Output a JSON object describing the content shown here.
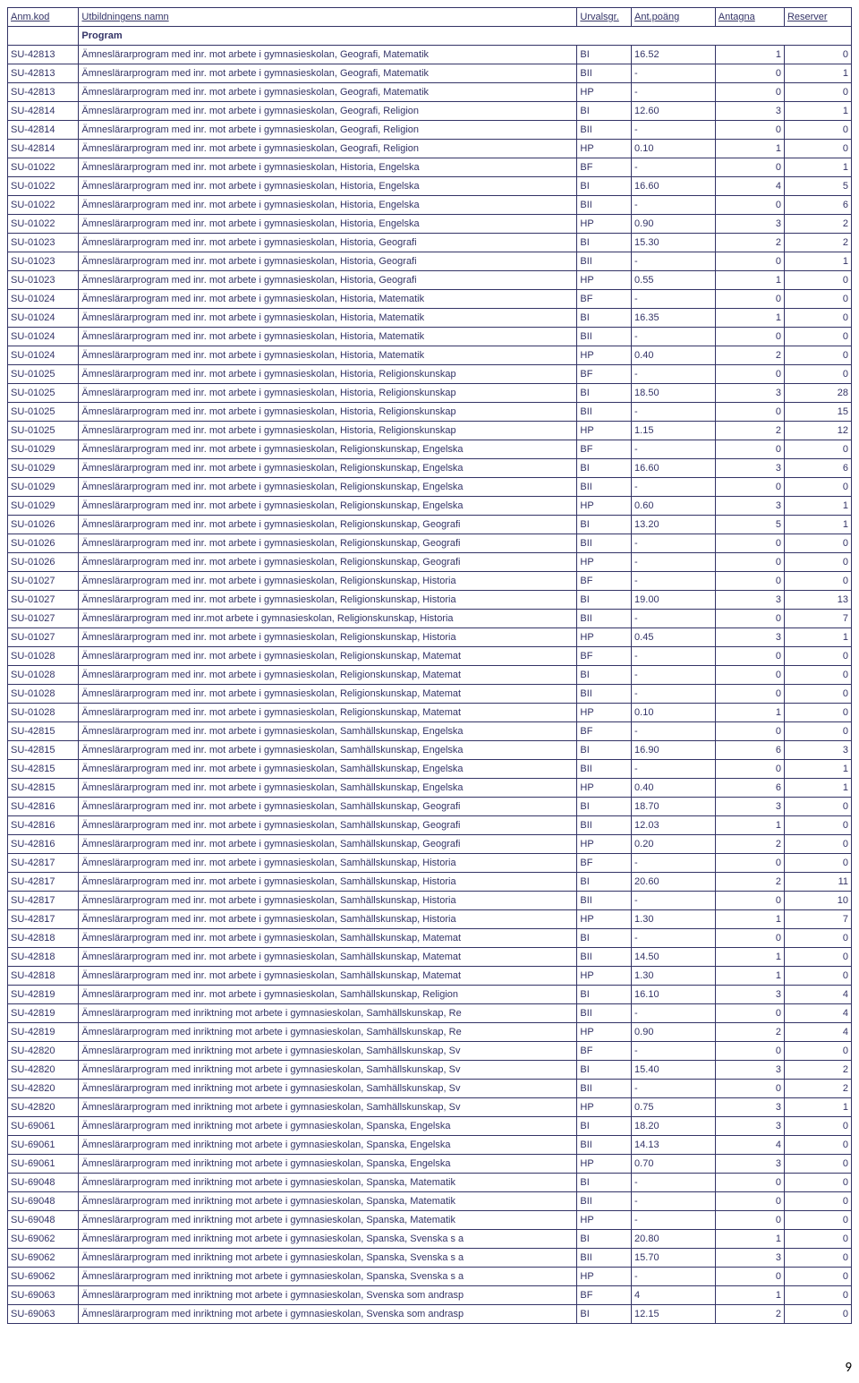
{
  "columns": {
    "code": "Anm.kod",
    "name": "Utbildningens namn",
    "urval": "Urvalsgr.",
    "poang": "Ant.poäng",
    "antagna": "Antagna",
    "reserver": "Reserver"
  },
  "section_label": "Program",
  "page_number": "9",
  "colors": {
    "text": "#333366",
    "border": "#333366",
    "background": "#ffffff"
  },
  "rows": [
    {
      "code": "SU-42813",
      "name": "Ämneslärarprogram med inr. mot arbete i gymnasieskolan, Geografi, Matematik",
      "urval": "BI",
      "poang": "16.52",
      "antagna": "1",
      "reserver": "0"
    },
    {
      "code": "SU-42813",
      "name": "Ämneslärarprogram med inr. mot arbete i gymnasieskolan, Geografi, Matematik",
      "urval": "BII",
      "poang": "-",
      "antagna": "0",
      "reserver": "1"
    },
    {
      "code": "SU-42813",
      "name": "Ämneslärarprogram med inr. mot arbete i gymnasieskolan, Geografi, Matematik",
      "urval": "HP",
      "poang": "-",
      "antagna": "0",
      "reserver": "0"
    },
    {
      "code": "SU-42814",
      "name": "Ämneslärarprogram med inr. mot arbete i gymnasieskolan, Geografi, Religion",
      "urval": "BI",
      "poang": "12.60",
      "antagna": "3",
      "reserver": "1"
    },
    {
      "code": "SU-42814",
      "name": "Ämneslärarprogram med inr. mot arbete i gymnasieskolan, Geografi, Religion",
      "urval": "BII",
      "poang": "-",
      "antagna": "0",
      "reserver": "0"
    },
    {
      "code": "SU-42814",
      "name": "Ämneslärarprogram med inr. mot arbete i gymnasieskolan, Geografi, Religion",
      "urval": "HP",
      "poang": "0.10",
      "antagna": "1",
      "reserver": "0"
    },
    {
      "code": "SU-01022",
      "name": "Ämneslärarprogram med inr. mot arbete i gymnasieskolan, Historia, Engelska",
      "urval": "BF",
      "poang": "-",
      "antagna": "0",
      "reserver": "1"
    },
    {
      "code": "SU-01022",
      "name": "Ämneslärarprogram med inr. mot arbete i gymnasieskolan, Historia, Engelska",
      "urval": "BI",
      "poang": "16.60",
      "antagna": "4",
      "reserver": "5"
    },
    {
      "code": "SU-01022",
      "name": "Ämneslärarprogram med inr. mot arbete i gymnasieskolan, Historia, Engelska",
      "urval": "BII",
      "poang": "-",
      "antagna": "0",
      "reserver": "6"
    },
    {
      "code": "SU-01022",
      "name": "Ämneslärarprogram med inr. mot arbete i gymnasieskolan, Historia, Engelska",
      "urval": "HP",
      "poang": "0.90",
      "antagna": "3",
      "reserver": "2"
    },
    {
      "code": "SU-01023",
      "name": "Ämneslärarprogram med inr. mot arbete i gymnasieskolan, Historia, Geografi",
      "urval": "BI",
      "poang": "15.30",
      "antagna": "2",
      "reserver": "2"
    },
    {
      "code": "SU-01023",
      "name": "Ämneslärarprogram med inr. mot arbete i gymnasieskolan, Historia, Geografi",
      "urval": "BII",
      "poang": "-",
      "antagna": "0",
      "reserver": "1"
    },
    {
      "code": "SU-01023",
      "name": "Ämneslärarprogram med inr. mot arbete i gymnasieskolan, Historia, Geografi",
      "urval": "HP",
      "poang": "0.55",
      "antagna": "1",
      "reserver": "0"
    },
    {
      "code": "SU-01024",
      "name": "Ämneslärarprogram med inr. mot arbete i gymnasieskolan, Historia, Matematik",
      "urval": "BF",
      "poang": "-",
      "antagna": "0",
      "reserver": "0"
    },
    {
      "code": "SU-01024",
      "name": "Ämneslärarprogram med inr. mot arbete i gymnasieskolan, Historia, Matematik",
      "urval": "BI",
      "poang": "16.35",
      "antagna": "1",
      "reserver": "0"
    },
    {
      "code": "SU-01024",
      "name": "Ämneslärarprogram med inr. mot arbete i gymnasieskolan, Historia, Matematik",
      "urval": "BII",
      "poang": "-",
      "antagna": "0",
      "reserver": "0"
    },
    {
      "code": "SU-01024",
      "name": "Ämneslärarprogram med inr. mot arbete i gymnasieskolan, Historia, Matematik",
      "urval": "HP",
      "poang": "0.40",
      "antagna": "2",
      "reserver": "0"
    },
    {
      "code": "SU-01025",
      "name": "Ämneslärarprogram med inr. mot arbete i gymnasieskolan, Historia, Religionskunskap",
      "urval": "BF",
      "poang": "-",
      "antagna": "0",
      "reserver": "0"
    },
    {
      "code": "SU-01025",
      "name": "Ämneslärarprogram med inr. mot arbete i gymnasieskolan, Historia, Religionskunskap",
      "urval": "BI",
      "poang": "18.50",
      "antagna": "3",
      "reserver": "28"
    },
    {
      "code": "SU-01025",
      "name": "Ämneslärarprogram med inr. mot arbete i gymnasieskolan, Historia, Religionskunskap",
      "urval": "BII",
      "poang": "-",
      "antagna": "0",
      "reserver": "15"
    },
    {
      "code": "SU-01025",
      "name": "Ämneslärarprogram med inr. mot arbete i gymnasieskolan, Historia, Religionskunskap",
      "urval": "HP",
      "poang": "1.15",
      "antagna": "2",
      "reserver": "12"
    },
    {
      "code": "SU-01029",
      "name": "Ämneslärarprogram med inr. mot arbete i gymnasieskolan, Religionskunskap, Engelska",
      "urval": "BF",
      "poang": "-",
      "antagna": "0",
      "reserver": "0"
    },
    {
      "code": "SU-01029",
      "name": "Ämneslärarprogram med inr. mot arbete i gymnasieskolan, Religionskunskap, Engelska",
      "urval": "BI",
      "poang": "16.60",
      "antagna": "3",
      "reserver": "6"
    },
    {
      "code": "SU-01029",
      "name": "Ämneslärarprogram med inr. mot arbete i gymnasieskolan, Religionskunskap, Engelska",
      "urval": "BII",
      "poang": "-",
      "antagna": "0",
      "reserver": "0"
    },
    {
      "code": "SU-01029",
      "name": "Ämneslärarprogram med inr. mot arbete i gymnasieskolan, Religionskunskap, Engelska",
      "urval": "HP",
      "poang": "0.60",
      "antagna": "3",
      "reserver": "1"
    },
    {
      "code": "SU-01026",
      "name": "Ämneslärarprogram med inr. mot arbete i gymnasieskolan, Religionskunskap, Geografi",
      "urval": "BI",
      "poang": "13.20",
      "antagna": "5",
      "reserver": "1"
    },
    {
      "code": "SU-01026",
      "name": "Ämneslärarprogram med inr. mot arbete i gymnasieskolan, Religionskunskap, Geografi",
      "urval": "BII",
      "poang": "-",
      "antagna": "0",
      "reserver": "0"
    },
    {
      "code": "SU-01026",
      "name": "Ämneslärarprogram med inr. mot arbete i gymnasieskolan, Religionskunskap, Geografi",
      "urval": "HP",
      "poang": "-",
      "antagna": "0",
      "reserver": "0"
    },
    {
      "code": "SU-01027",
      "name": "Ämneslärarprogram med inr. mot arbete i gymnasieskolan, Religionskunskap, Historia",
      "urval": "BF",
      "poang": "-",
      "antagna": "0",
      "reserver": "0"
    },
    {
      "code": "SU-01027",
      "name": "Ämneslärarprogram med inr. mot arbete i gymnasieskolan, Religionskunskap, Historia",
      "urval": "BI",
      "poang": "19.00",
      "antagna": "3",
      "reserver": "13"
    },
    {
      "code": "SU-01027",
      "name": "Ämneslärarprogram med inr.mot arbete i gymnasieskolan, Religionskunskap, Historia",
      "urval": "BII",
      "poang": "-",
      "antagna": "0",
      "reserver": "7"
    },
    {
      "code": "SU-01027",
      "name": "Ämneslärarprogram med inr. mot arbete i gymnasieskolan, Religionskunskap, Historia",
      "urval": "HP",
      "poang": "0.45",
      "antagna": "3",
      "reserver": "1"
    },
    {
      "code": "SU-01028",
      "name": "Ämneslärarprogram med inr. mot arbete i gymnasieskolan, Religionskunskap, Matemat",
      "urval": "BF",
      "poang": "-",
      "antagna": "0",
      "reserver": "0"
    },
    {
      "code": "SU-01028",
      "name": "Ämneslärarprogram med inr. mot arbete i gymnasieskolan, Religionskunskap, Matemat",
      "urval": "BI",
      "poang": "-",
      "antagna": "0",
      "reserver": "0"
    },
    {
      "code": "SU-01028",
      "name": "Ämneslärarprogram med inr. mot arbete i gymnasieskolan, Religionskunskap, Matemat",
      "urval": "BII",
      "poang": "-",
      "antagna": "0",
      "reserver": "0"
    },
    {
      "code": "SU-01028",
      "name": "Ämneslärarprogram med inr. mot arbete i gymnasieskolan, Religionskunskap, Matemat",
      "urval": "HP",
      "poang": "0.10",
      "antagna": "1",
      "reserver": "0"
    },
    {
      "code": "SU-42815",
      "name": "Ämneslärarprogram med inr. mot arbete i gymnasieskolan, Samhällskunskap, Engelska",
      "urval": "BF",
      "poang": "-",
      "antagna": "0",
      "reserver": "0"
    },
    {
      "code": "SU-42815",
      "name": "Ämneslärarprogram med inr. mot arbete i gymnasieskolan, Samhällskunskap, Engelska",
      "urval": "BI",
      "poang": "16.90",
      "antagna": "6",
      "reserver": "3"
    },
    {
      "code": "SU-42815",
      "name": "Ämneslärarprogram med inr. mot arbete i gymnasieskolan, Samhällskunskap, Engelska",
      "urval": "BII",
      "poang": "-",
      "antagna": "0",
      "reserver": "1"
    },
    {
      "code": "SU-42815",
      "name": "Ämneslärarprogram med inr. mot arbete i gymnasieskolan, Samhällskunskap, Engelska",
      "urval": "HP",
      "poang": "0.40",
      "antagna": "6",
      "reserver": "1"
    },
    {
      "code": "SU-42816",
      "name": "Ämneslärarprogram med inr. mot arbete i gymnasieskolan, Samhällskunskap, Geografi",
      "urval": "BI",
      "poang": "18.70",
      "antagna": "3",
      "reserver": "0"
    },
    {
      "code": "SU-42816",
      "name": "Ämneslärarprogram med inr. mot arbete i gymnasieskolan, Samhällskunskap, Geografi",
      "urval": "BII",
      "poang": "12.03",
      "antagna": "1",
      "reserver": "0"
    },
    {
      "code": "SU-42816",
      "name": "Ämneslärarprogram med inr. mot arbete i gymnasieskolan, Samhällskunskap, Geografi",
      "urval": "HP",
      "poang": "0.20",
      "antagna": "2",
      "reserver": "0"
    },
    {
      "code": "SU-42817",
      "name": "Ämneslärarprogram med inr. mot arbete i gymnasieskolan, Samhällskunskap, Historia",
      "urval": "BF",
      "poang": "-",
      "antagna": "0",
      "reserver": "0"
    },
    {
      "code": "SU-42817",
      "name": "Ämneslärarprogram med inr. mot arbete i gymnasieskolan, Samhällskunskap, Historia",
      "urval": "BI",
      "poang": "20.60",
      "antagna": "2",
      "reserver": "11"
    },
    {
      "code": "SU-42817",
      "name": "Ämneslärarprogram med inr. mot arbete i gymnasieskolan, Samhällskunskap, Historia",
      "urval": "BII",
      "poang": "-",
      "antagna": "0",
      "reserver": "10"
    },
    {
      "code": "SU-42817",
      "name": "Ämneslärarprogram med inr. mot arbete i gymnasieskolan, Samhällskunskap, Historia",
      "urval": "HP",
      "poang": "1.30",
      "antagna": "1",
      "reserver": "7"
    },
    {
      "code": "SU-42818",
      "name": "Ämneslärarprogram med inr. mot arbete i gymnasieskolan, Samhällskunskap, Matemat",
      "urval": "BI",
      "poang": "-",
      "antagna": "0",
      "reserver": "0"
    },
    {
      "code": "SU-42818",
      "name": "Ämneslärarprogram med inr. mot arbete i gymnasieskolan, Samhällskunskap, Matemat",
      "urval": "BII",
      "poang": "14.50",
      "antagna": "1",
      "reserver": "0"
    },
    {
      "code": "SU-42818",
      "name": "Ämneslärarprogram med inr. mot arbete i gymnasieskolan, Samhällskunskap, Matemat",
      "urval": "HP",
      "poang": "1.30",
      "antagna": "1",
      "reserver": "0"
    },
    {
      "code": "SU-42819",
      "name": "Ämneslärarprogram med inr. mot arbete i gymnasieskolan, Samhällskunskap, Religion",
      "urval": "BI",
      "poang": "16.10",
      "antagna": "3",
      "reserver": "4"
    },
    {
      "code": "SU-42819",
      "name": "Ämneslärarprogram med inriktning mot arbete i gymnasieskolan, Samhällskunskap, Re",
      "urval": "BII",
      "poang": "-",
      "antagna": "0",
      "reserver": "4"
    },
    {
      "code": "SU-42819",
      "name": "Ämneslärarprogram med inriktning mot arbete i gymnasieskolan, Samhällskunskap, Re",
      "urval": "HP",
      "poang": "0.90",
      "antagna": "2",
      "reserver": "4"
    },
    {
      "code": "SU-42820",
      "name": "Ämneslärarprogram med inriktning mot arbete i gymnasieskolan, Samhällskunskap, Sv",
      "urval": "BF",
      "poang": "-",
      "antagna": "0",
      "reserver": "0"
    },
    {
      "code": "SU-42820",
      "name": "Ämneslärarprogram med inriktning mot arbete i gymnasieskolan, Samhällskunskap, Sv",
      "urval": "BI",
      "poang": "15.40",
      "antagna": "3",
      "reserver": "2"
    },
    {
      "code": "SU-42820",
      "name": "Ämneslärarprogram med inriktning mot arbete i gymnasieskolan, Samhällskunskap, Sv",
      "urval": "BII",
      "poang": "-",
      "antagna": "0",
      "reserver": "2"
    },
    {
      "code": "SU-42820",
      "name": "Ämneslärarprogram med inriktning mot arbete i gymnasieskolan, Samhällskunskap, Sv",
      "urval": "HP",
      "poang": "0.75",
      "antagna": "3",
      "reserver": "1"
    },
    {
      "code": "SU-69061",
      "name": "Ämneslärarprogram med inriktning mot arbete i gymnasieskolan, Spanska, Engelska",
      "urval": "BI",
      "poang": "18.20",
      "antagna": "3",
      "reserver": "0"
    },
    {
      "code": "SU-69061",
      "name": "Ämneslärarprogram med inriktning mot arbete i gymnasieskolan, Spanska, Engelska",
      "urval": "BII",
      "poang": "14.13",
      "antagna": "4",
      "reserver": "0"
    },
    {
      "code": "SU-69061",
      "name": "Ämneslärarprogram med inriktning mot arbete i gymnasieskolan, Spanska, Engelska",
      "urval": "HP",
      "poang": "0.70",
      "antagna": "3",
      "reserver": "0"
    },
    {
      "code": "SU-69048",
      "name": "Ämneslärarprogram med inriktning mot arbete i gymnasieskolan, Spanska, Matematik",
      "urval": "BI",
      "poang": "-",
      "antagna": "0",
      "reserver": "0"
    },
    {
      "code": "SU-69048",
      "name": "Ämneslärarprogram med inriktning mot arbete i gymnasieskolan, Spanska, Matematik",
      "urval": "BII",
      "poang": "-",
      "antagna": "0",
      "reserver": "0"
    },
    {
      "code": "SU-69048",
      "name": "Ämneslärarprogram med inriktning mot arbete i gymnasieskolan, Spanska, Matematik",
      "urval": "HP",
      "poang": "-",
      "antagna": "0",
      "reserver": "0"
    },
    {
      "code": "SU-69062",
      "name": "Ämneslärarprogram med inriktning mot arbete i gymnasieskolan, Spanska, Svenska s a",
      "urval": "BI",
      "poang": "20.80",
      "antagna": "1",
      "reserver": "0"
    },
    {
      "code": "SU-69062",
      "name": "Ämneslärarprogram med inriktning mot arbete i gymnasieskolan, Spanska, Svenska s a",
      "urval": "BII",
      "poang": "15.70",
      "antagna": "3",
      "reserver": "0"
    },
    {
      "code": "SU-69062",
      "name": "Ämneslärarprogram med inriktning mot arbete i gymnasieskolan, Spanska, Svenska s a",
      "urval": "HP",
      "poang": "-",
      "antagna": "0",
      "reserver": "0"
    },
    {
      "code": "SU-69063",
      "name": "Ämneslärarprogram med inriktning mot arbete i gymnasieskolan, Svenska som andrasp",
      "urval": "BF",
      "poang": "4",
      "antagna": "1",
      "reserver": "0"
    },
    {
      "code": "SU-69063",
      "name": "Ämneslärarprogram med inriktning mot arbete i gymnasieskolan, Svenska som andrasp",
      "urval": "BI",
      "poang": "12.15",
      "antagna": "2",
      "reserver": "0"
    }
  ]
}
